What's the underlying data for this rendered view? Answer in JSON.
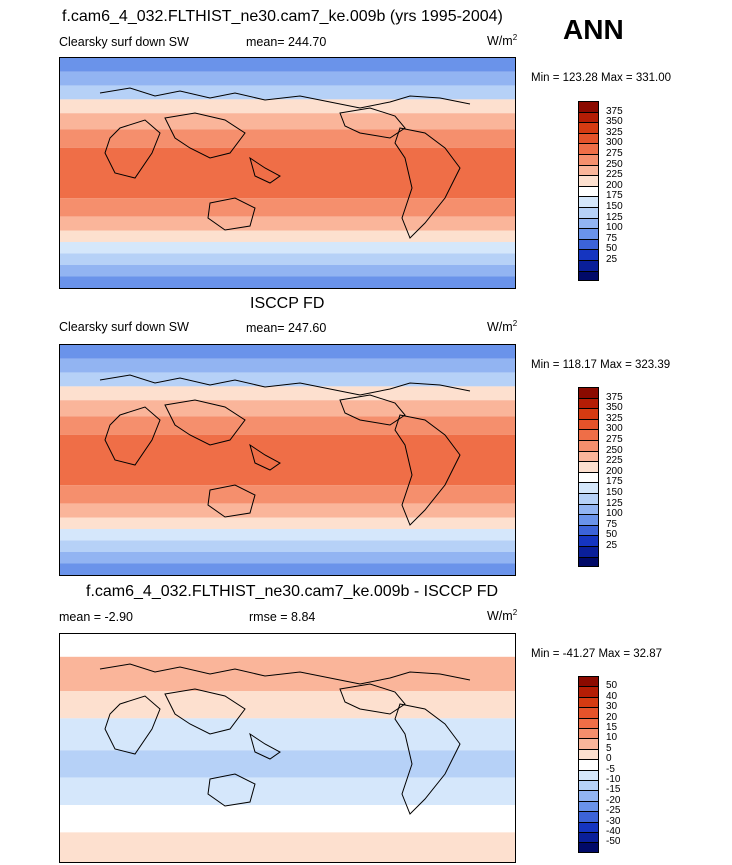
{
  "season": "ANN",
  "panels": [
    {
      "title": "f.cam6_4_032.FLTHIST_ne30.cam7_ke.009b (yrs 1995-2004)",
      "variable": "Clearsky surf down SW",
      "stat": "mean= 244.70",
      "units": "W/m",
      "units_sup": "2",
      "minmax": "Min = 123.28 Max = 331.00",
      "colorbar": {
        "labels": [
          "375",
          "350",
          "325",
          "300",
          "275",
          "250",
          "225",
          "200",
          "175",
          "150",
          "125",
          "100",
          "75",
          "50",
          "25"
        ],
        "colors": [
          "#8b0a00",
          "#b41d05",
          "#d53b12",
          "#e5532a",
          "#ef6e47",
          "#f58f6d",
          "#fab59a",
          "#fde0cf",
          "#ffffff",
          "#d5e7fb",
          "#b6d1f7",
          "#92b4f2",
          "#6a93ea",
          "#3c63d8",
          "#1535c0",
          "#0a1f99",
          "#010a68"
        ]
      }
    },
    {
      "title": "ISCCP FD",
      "variable": "Clearsky surf down SW",
      "stat": "mean= 247.60",
      "units": "W/m",
      "units_sup": "2",
      "minmax": "Min = 118.17 Max = 323.39",
      "colorbar": {
        "labels": [
          "375",
          "350",
          "325",
          "300",
          "275",
          "250",
          "225",
          "200",
          "175",
          "150",
          "125",
          "100",
          "75",
          "50",
          "25"
        ],
        "colors": [
          "#8b0a00",
          "#b41d05",
          "#d53b12",
          "#e5532a",
          "#ef6e47",
          "#f58f6d",
          "#fab59a",
          "#fde0cf",
          "#ffffff",
          "#d5e7fb",
          "#b6d1f7",
          "#92b4f2",
          "#6a93ea",
          "#3c63d8",
          "#1535c0",
          "#0a1f99",
          "#010a68"
        ]
      }
    },
    {
      "title": "f.cam6_4_032.FLTHIST_ne30.cam7_ke.009b - ISCCP FD",
      "stat_left": "mean =  -2.90",
      "stat": "rmse =   8.84",
      "units": "W/m",
      "units_sup": "2",
      "minmax": "Min = -41.27 Max =  32.87",
      "colorbar": {
        "labels": [
          "50",
          "40",
          "30",
          "20",
          "15",
          "10",
          "5",
          "0",
          "-5",
          "-10",
          "-15",
          "-20",
          "-25",
          "-30",
          "-40",
          "-50"
        ],
        "colors": [
          "#8b0a00",
          "#b41d05",
          "#d53b12",
          "#e5532a",
          "#ef6e47",
          "#f58f6d",
          "#fab59a",
          "#fde0cf",
          "#ffffff",
          "#d5e7fb",
          "#b6d1f7",
          "#92b4f2",
          "#6a93ea",
          "#3c63d8",
          "#1535c0",
          "#0a1f99",
          "#010a68"
        ]
      }
    }
  ]
}
